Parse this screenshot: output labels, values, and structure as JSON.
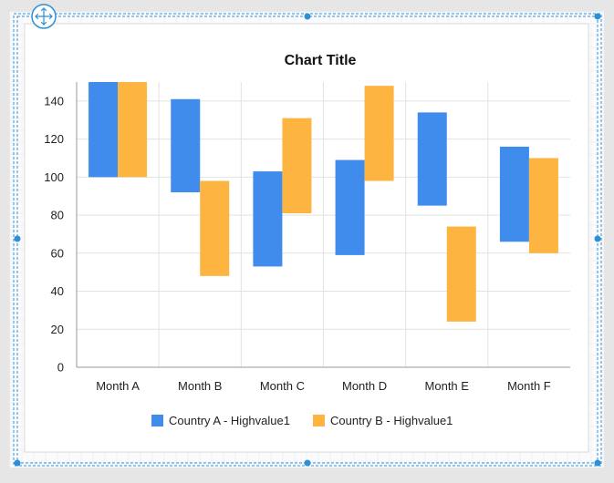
{
  "chart_data": {
    "type": "bar",
    "subtype": "floating-range",
    "title": "Chart Title",
    "xlabel": "",
    "ylabel": "",
    "categories": [
      "Month A",
      "Month B",
      "Month C",
      "Month D",
      "Month E",
      "Month F"
    ],
    "ylim": [
      0,
      150
    ],
    "yticks": [
      0,
      20,
      40,
      60,
      80,
      100,
      120,
      140
    ],
    "grid": true,
    "legend_position": "bottom",
    "series": [
      {
        "name": "Country A - Highvalue1",
        "color": "#3f8ced",
        "low": [
          100,
          92,
          53,
          59,
          85,
          66
        ],
        "high": [
          150,
          141,
          103,
          109,
          134,
          116
        ]
      },
      {
        "name": "Country B - Highvalue1",
        "color": "#fdb441",
        "low": [
          100,
          48,
          81,
          98,
          24,
          60
        ],
        "high": [
          150,
          98,
          131,
          148,
          74,
          110
        ]
      }
    ]
  },
  "editor": {
    "move_handle_icon": "move-arrows-icon",
    "selection_color": "#2e8fd6"
  }
}
